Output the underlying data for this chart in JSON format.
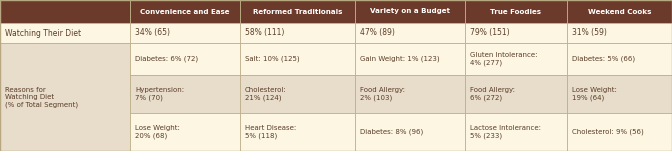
{
  "header_bg": "#6B3A2A",
  "header_text_color": "#FFFFFF",
  "row_bg_light": "#FDF6E3",
  "row_bg_medium": "#E8DCCB",
  "watching_bg": "#FDF6E3",
  "border_color": "#B8A882",
  "body_text_color": "#5A3E28",
  "col_headers": [
    "Convenience and Ease",
    "Reformed Traditionals",
    "Variety on a Budget",
    "True Foodies",
    "Weekend Cooks"
  ],
  "watching_diet_row": [
    "34% (65)",
    "58% (111)",
    "47% (89)",
    "79% (151)",
    "31% (59)"
  ],
  "reasons_rows": [
    [
      "Diabetes: 6% (72)",
      "Salt: 10% (125)",
      "Gain Weight: 1% (123)",
      "Gluten Intolerance:\n4% (277)",
      "Diabetes: 5% (66)"
    ],
    [
      "Hypertension:\n7% (70)",
      "Cholesterol:\n21% (124)",
      "Food Allergy:\n2% (103)",
      "Food Allergy:\n6% (272)",
      "Lose Weight:\n19% (64)"
    ],
    [
      "Lose Weight:\n20% (68)",
      "Heart Disease:\n5% (118)",
      "Diabetes: 8% (96)",
      "Lactose Intolerance:\n5% (233)",
      "Cholesterol: 9% (56)"
    ]
  ],
  "row_label_reasons": "Reasons for\nWatching Diet\n(% of Total Segment)",
  "row_label_watching": "Watching Their Diet",
  "figsize": [
    6.72,
    1.51
  ],
  "dpi": 100
}
